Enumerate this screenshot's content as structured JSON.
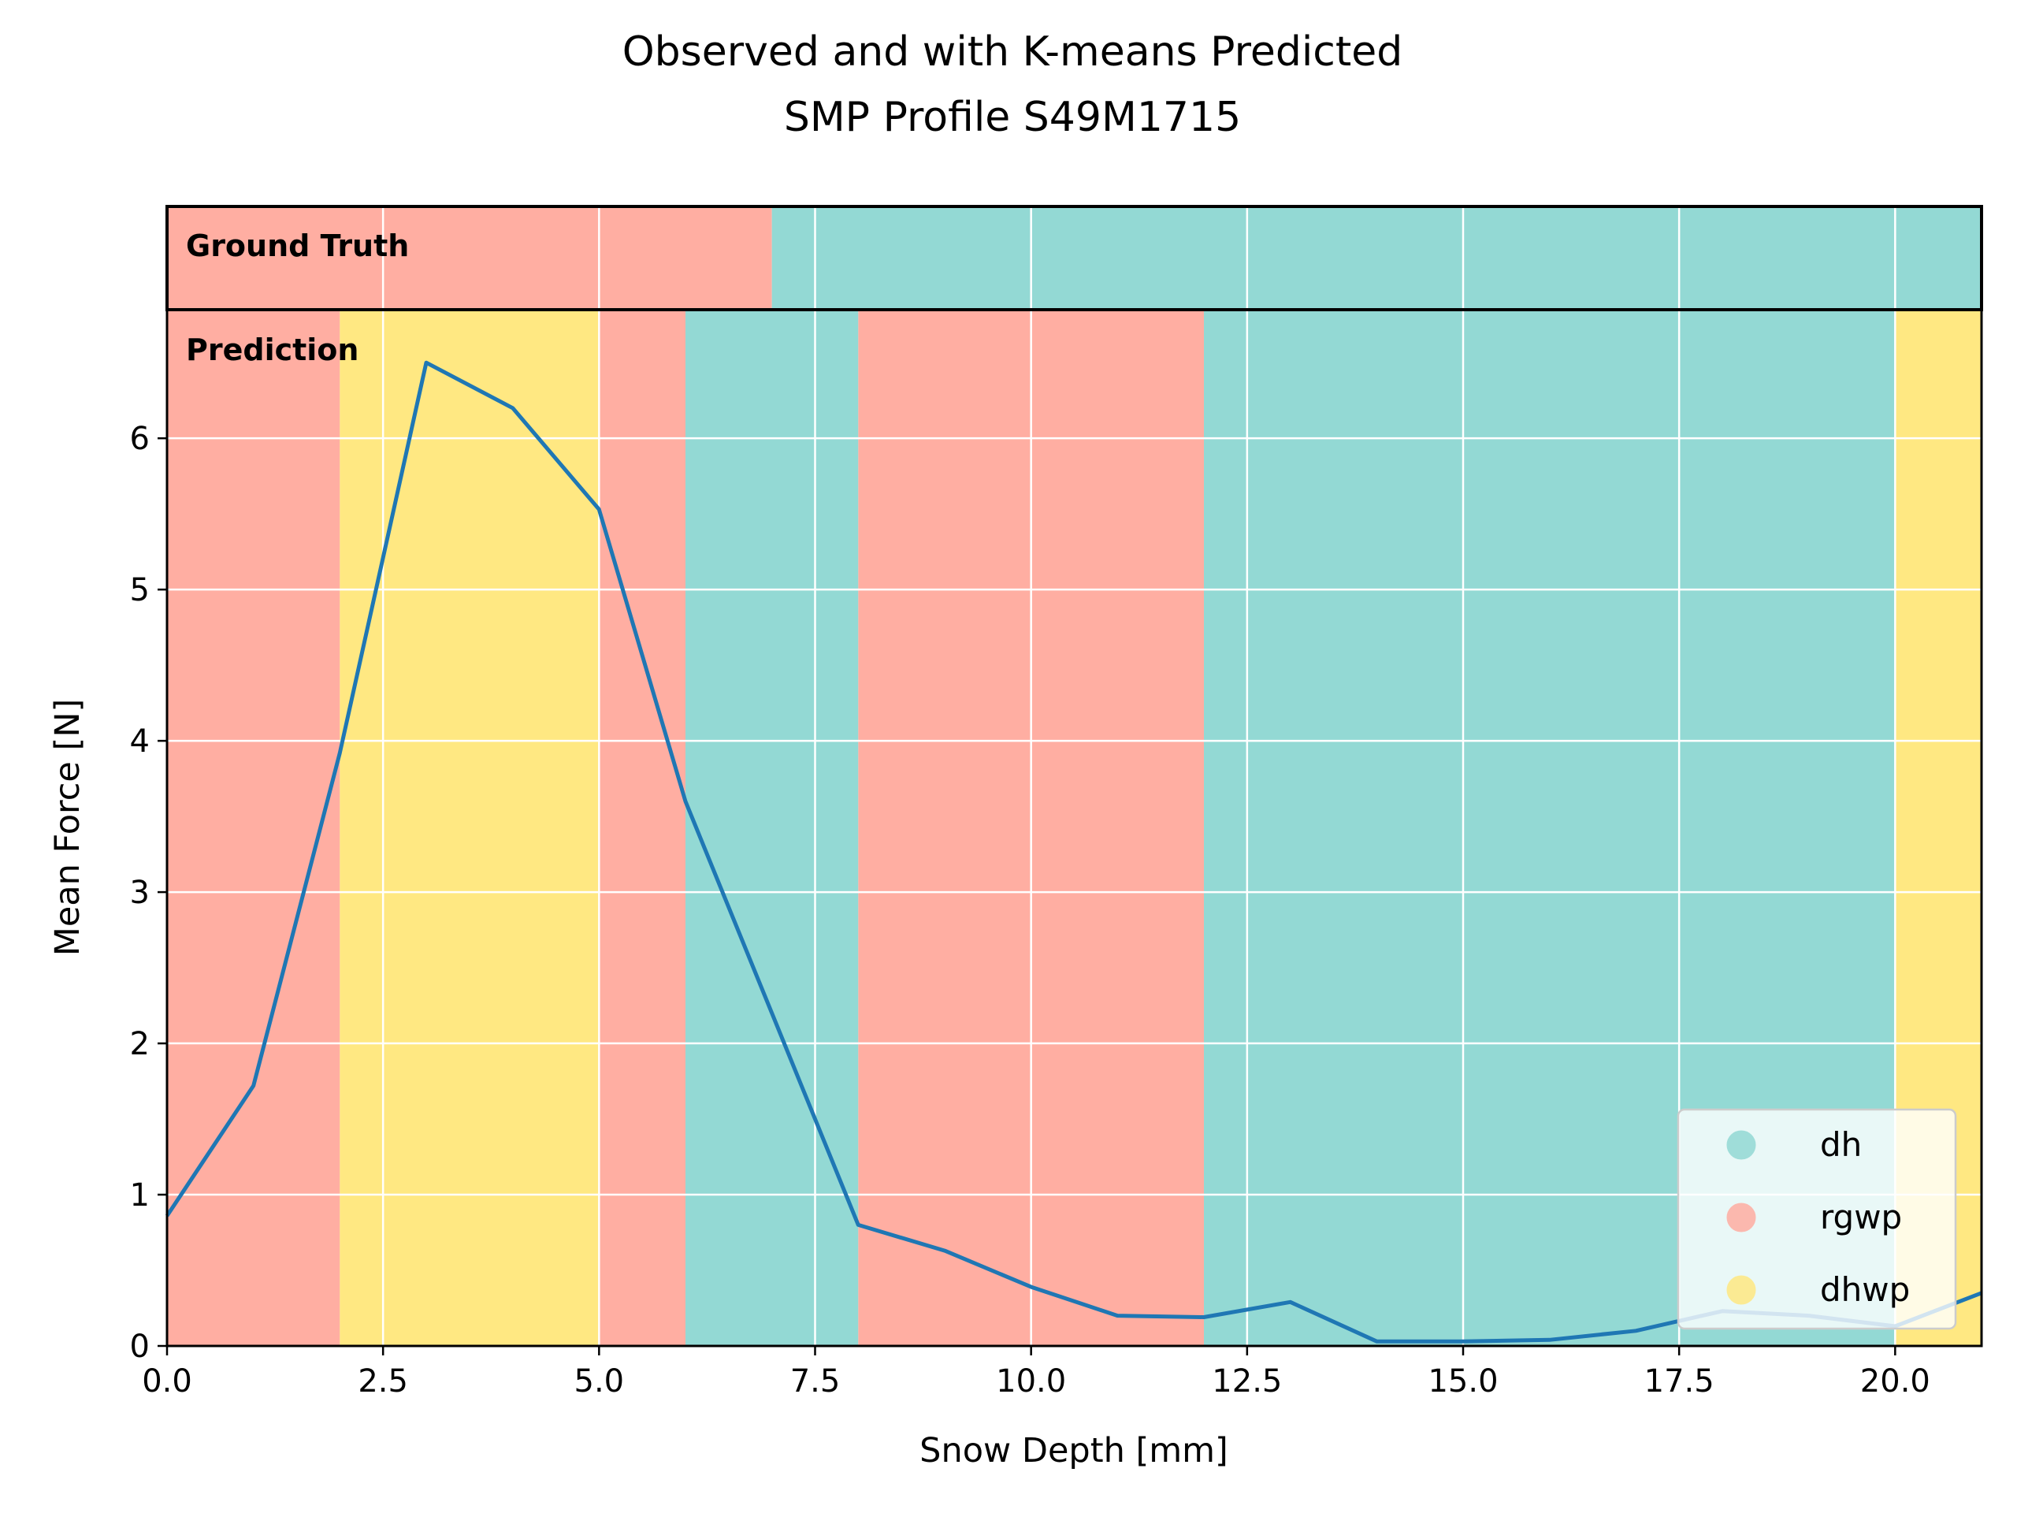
{
  "chart_data": {
    "type": "line",
    "title": "Observed and with K-means Predicted",
    "subtitle": "SMP Profile S49M1715",
    "xlabel": "Snow Depth [mm]",
    "ylabel": "Mean Force [N]",
    "xlim": [
      0,
      21
    ],
    "ylim": [
      0,
      6.85
    ],
    "xticks": [
      0,
      2.5,
      5,
      7.5,
      10,
      12.5,
      15,
      17.5,
      20
    ],
    "xtick_labels": [
      "0.0",
      "2.5",
      "5.0",
      "7.5",
      "10.0",
      "12.5",
      "15.0",
      "17.5",
      "20.0"
    ],
    "yticks": [
      0,
      1,
      2,
      3,
      4,
      5,
      6
    ],
    "ytick_labels": [
      "0",
      "1",
      "2",
      "3",
      "4",
      "5",
      "6"
    ],
    "grid": true,
    "series": [
      {
        "color": "#1f77b4",
        "x": [
          0,
          1,
          2,
          3,
          4,
          5,
          6,
          7,
          8,
          9,
          10,
          11,
          12,
          13,
          14,
          15,
          16,
          17,
          18,
          19,
          20,
          21
        ],
        "y": [
          0.86,
          1.72,
          3.92,
          6.5,
          6.2,
          5.53,
          3.6,
          2.2,
          0.8,
          0.63,
          0.39,
          0.2,
          0.19,
          0.29,
          0.03,
          0.03,
          0.04,
          0.1,
          0.23,
          0.2,
          0.13,
          0.35
        ]
      }
    ],
    "ground_truth_label": "Ground Truth",
    "prediction_label": "Prediction",
    "ground_truth_segments": [
      {
        "start": 0,
        "end": 7,
        "class": "rgwp"
      },
      {
        "start": 7,
        "end": 21,
        "class": "dh"
      }
    ],
    "prediction_segments": [
      {
        "start": 0,
        "end": 2,
        "class": "rgwp"
      },
      {
        "start": 2,
        "end": 5,
        "class": "dhwp"
      },
      {
        "start": 5,
        "end": 6,
        "class": "rgwp"
      },
      {
        "start": 6,
        "end": 8,
        "class": "dh"
      },
      {
        "start": 8,
        "end": 12,
        "class": "rgwp"
      },
      {
        "start": 12,
        "end": 20,
        "class": "dh"
      },
      {
        "start": 20,
        "end": 21,
        "class": "dhwp"
      }
    ],
    "classes": {
      "dh": "#93d9d4",
      "rgwp": "#ffaea2",
      "dhwp": "#ffe882"
    },
    "legend": {
      "location": "lower-right",
      "entries": [
        "dh",
        "rgwp",
        "dhwp"
      ]
    }
  }
}
